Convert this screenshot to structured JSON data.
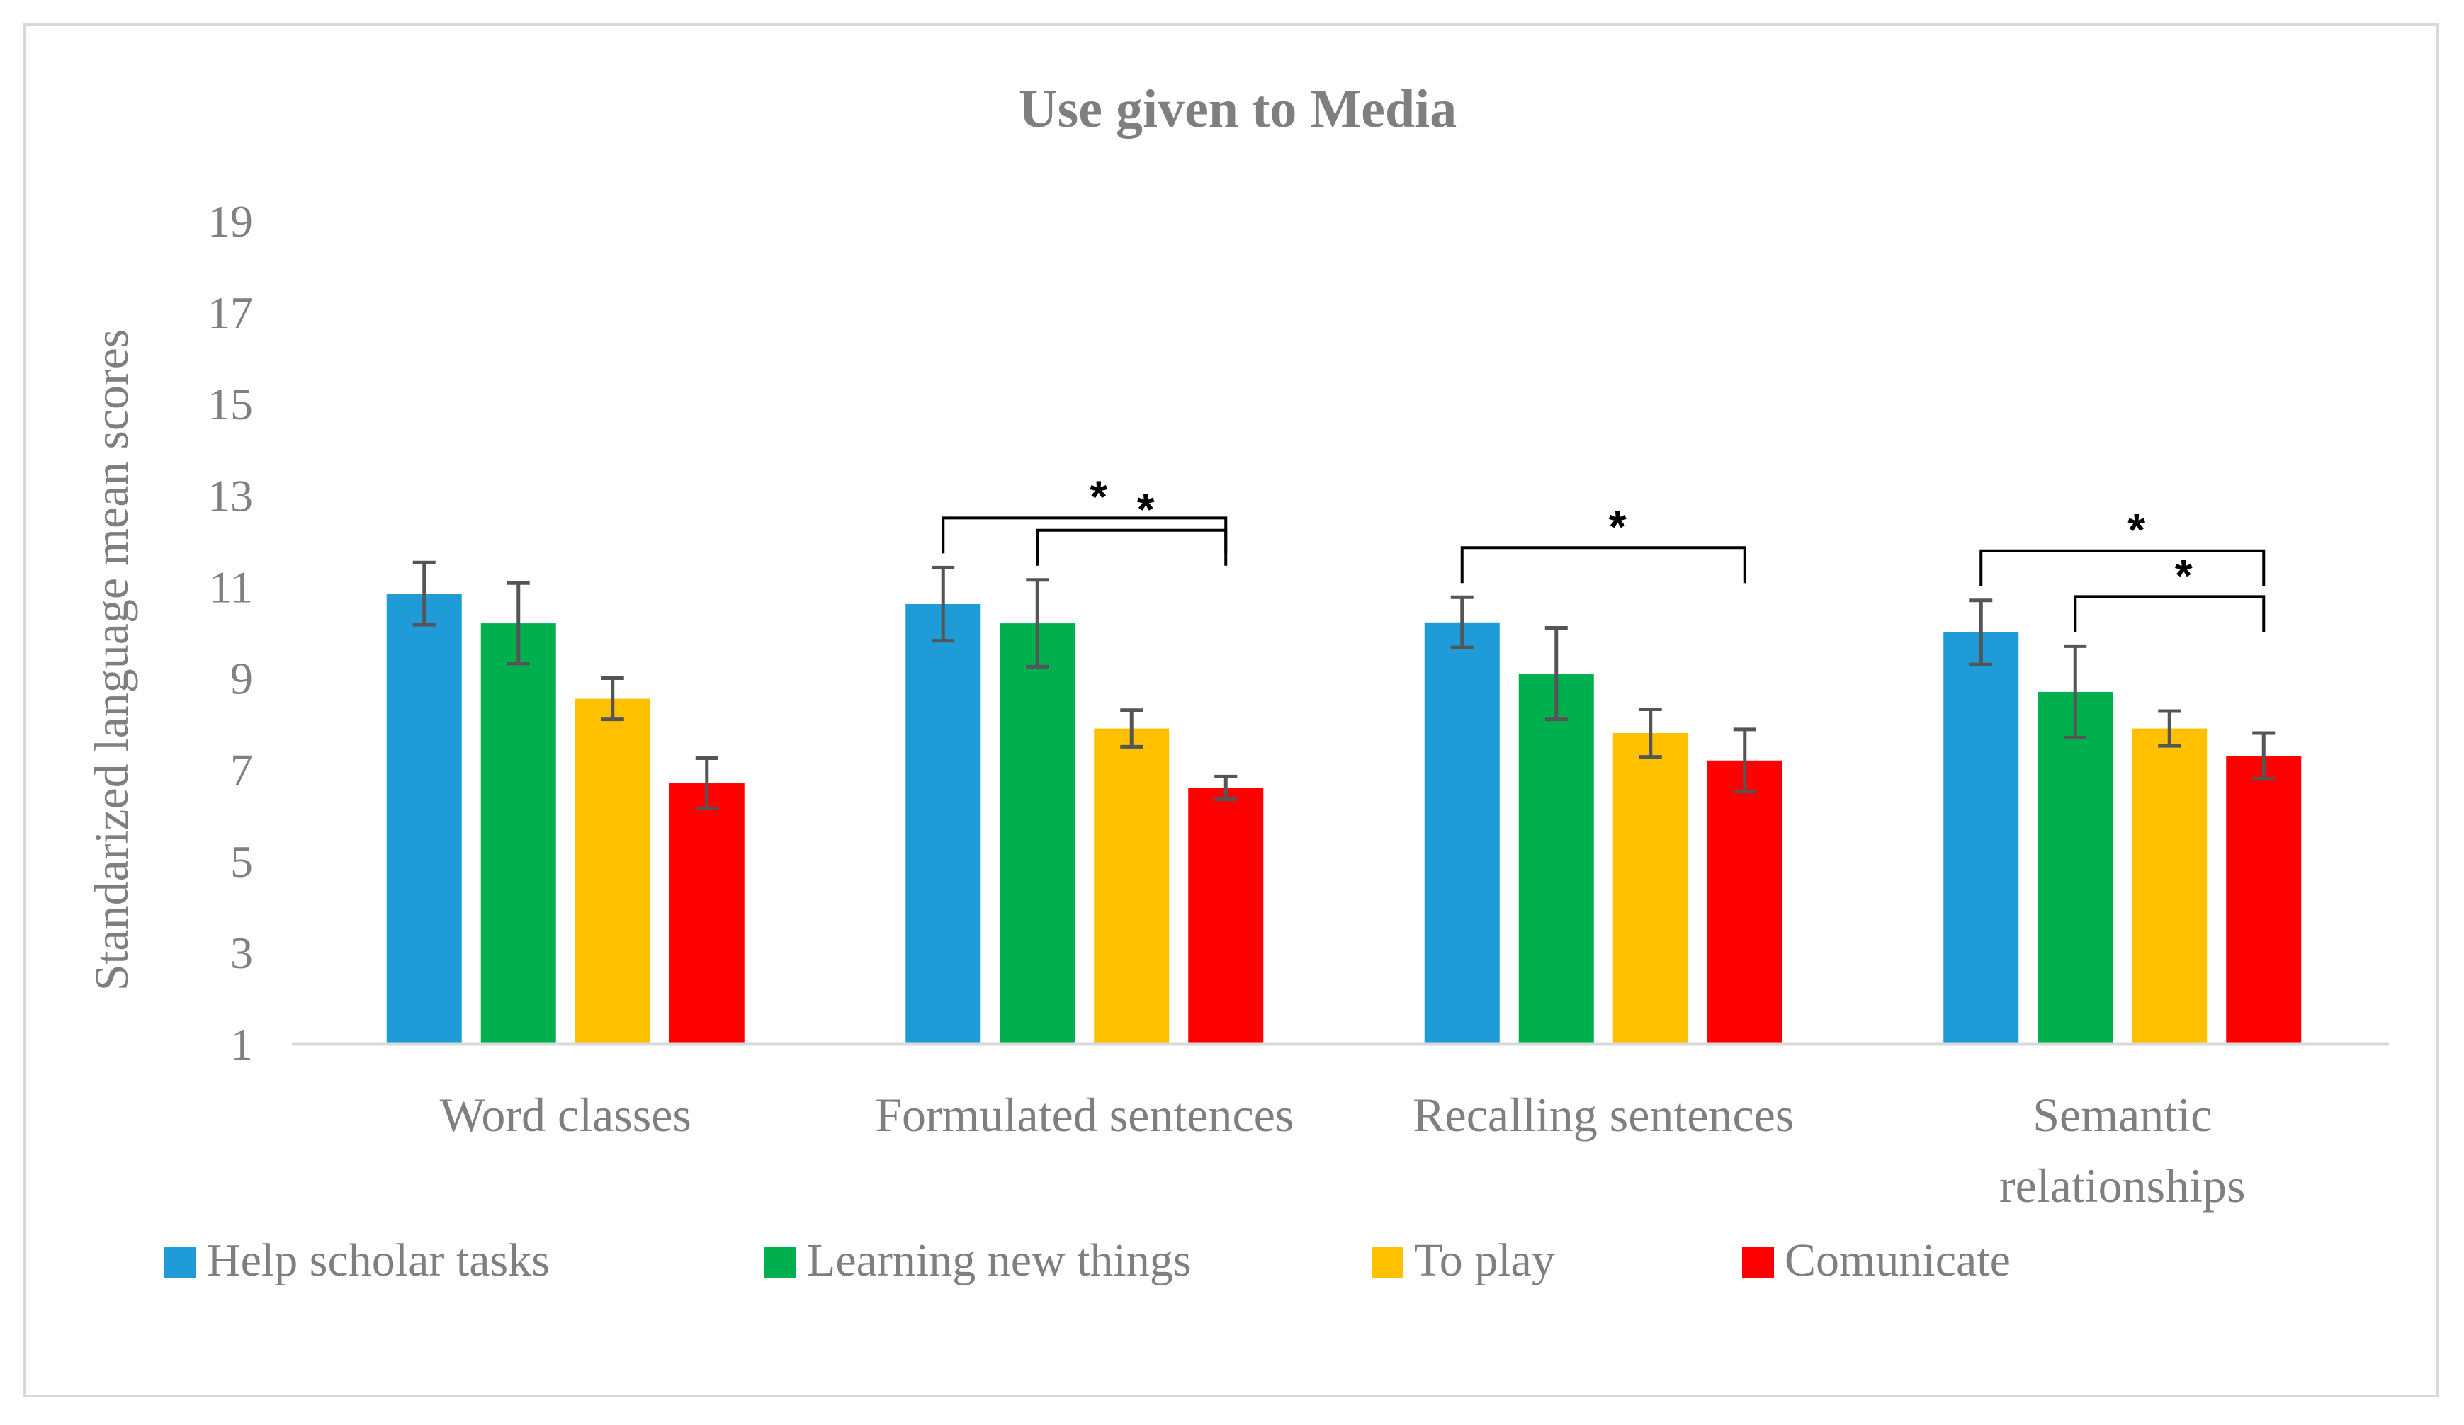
{
  "chart_data": {
    "type": "bar",
    "title": "Use given to Media",
    "xlabel": "",
    "ylabel": "Standarized language mean scores",
    "ylim": [
      1,
      19
    ],
    "yticks": [
      1,
      3,
      5,
      7,
      9,
      11,
      13,
      15,
      17,
      19
    ],
    "categories": [
      [
        "Word classes"
      ],
      [
        "Formulated sentences"
      ],
      [
        "Recalling sentences"
      ],
      [
        "Semantic",
        "relationships"
      ]
    ],
    "series": [
      {
        "name": "Help scholar tasks",
        "color": "#1f9bd7",
        "values": [
          10.85,
          10.62,
          10.22,
          10.0
        ],
        "errors": [
          0.68,
          0.8,
          0.55,
          0.7
        ]
      },
      {
        "name": "Learning new things",
        "color": "#00b04f",
        "values": [
          10.2,
          10.2,
          9.1,
          8.7
        ],
        "errors": [
          0.88,
          0.95,
          1.0,
          1.0
        ]
      },
      {
        "name": "To play",
        "color": "#ffc000",
        "values": [
          8.55,
          7.9,
          7.8,
          7.9
        ],
        "errors": [
          0.45,
          0.4,
          0.52,
          0.38
        ]
      },
      {
        "name": "Comunicate",
        "color": "#ff0000",
        "values": [
          6.7,
          6.6,
          7.2,
          7.3
        ],
        "errors": [
          0.55,
          0.25,
          0.68,
          0.5
        ]
      }
    ],
    "significance": [
      {
        "category": 1,
        "from_series": 0,
        "to_series": 3,
        "label": "*"
      },
      {
        "category": 1,
        "from_series": 1,
        "to_series": 3,
        "label": "*"
      },
      {
        "category": 2,
        "from_series": 0,
        "to_series": 3,
        "label": "*"
      },
      {
        "category": 3,
        "from_series": 0,
        "to_series": 3,
        "label": "*"
      },
      {
        "category": 3,
        "from_series": 1,
        "to_series": 3,
        "label": "*"
      }
    ],
    "grid": false,
    "legend_position": "bottom"
  }
}
